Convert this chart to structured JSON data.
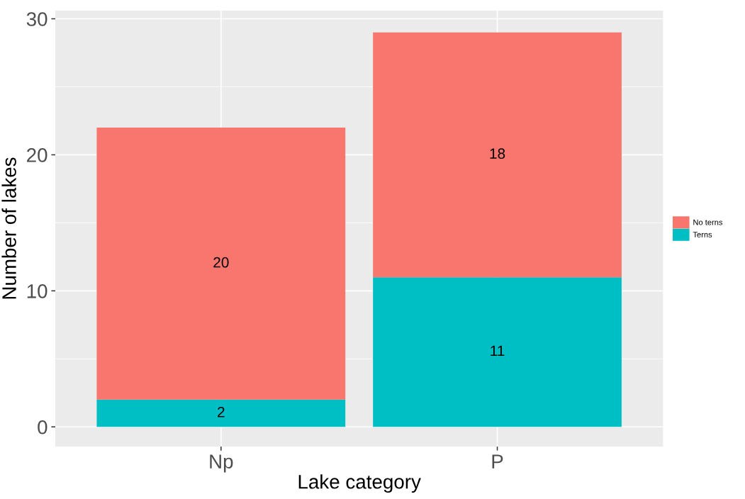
{
  "chart_data": {
    "type": "bar",
    "xlabel": "Lake category",
    "ylabel": "Number of lakes",
    "categories": [
      "Np",
      "P"
    ],
    "series": [
      {
        "name": "Terns",
        "color": "#00bfc4",
        "values": [
          2,
          11
        ]
      },
      {
        "name": "No terns",
        "color": "#f8766d",
        "values": [
          20,
          18
        ]
      }
    ],
    "stacked": true,
    "data_labels": true,
    "ylim": [
      -1.45,
      30.6
    ],
    "yticks": [
      0,
      10,
      20,
      30
    ],
    "grid": true,
    "legend": "right"
  }
}
